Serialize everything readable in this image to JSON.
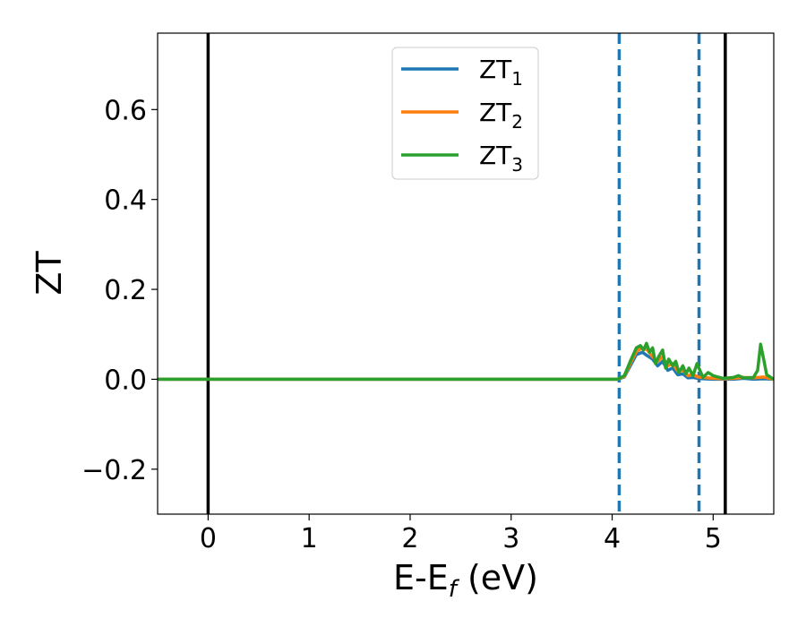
{
  "chart_data": {
    "type": "line",
    "title": "",
    "xlabel": {
      "main": "E-E",
      "sub": "f",
      "unit": " (eV)"
    },
    "ylabel": "ZT",
    "xlim": [
      -0.5,
      5.6
    ],
    "ylim": [
      -0.3,
      0.77
    ],
    "xticks": [
      0,
      1,
      2,
      3,
      4,
      5
    ],
    "xtick_labels": [
      "0",
      "1",
      "2",
      "3",
      "4",
      "5"
    ],
    "yticks": [
      -0.2,
      0.0,
      0.2,
      0.4,
      0.6
    ],
    "ytick_labels": [
      "−0.2",
      "0.0",
      "0.2",
      "0.4",
      "0.6"
    ],
    "grid": false,
    "legend_position": "top-center",
    "vlines": [
      {
        "x": 0.0,
        "style": "solid",
        "color": "#000000"
      },
      {
        "x": 5.12,
        "style": "solid",
        "color": "#000000"
      },
      {
        "x": 4.07,
        "style": "dashed",
        "color": "#1f77b4"
      },
      {
        "x": 4.86,
        "style": "dashed",
        "color": "#1f77b4"
      }
    ],
    "series": [
      {
        "name": "ZT",
        "name_sub": "1",
        "color": "#1f77b4",
        "x": [
          -0.5,
          4.05,
          4.12,
          4.18,
          4.24,
          4.3,
          4.35,
          4.4,
          4.45,
          4.5,
          4.55,
          4.6,
          4.65,
          4.7,
          4.75,
          4.8,
          4.85,
          4.9,
          5.0,
          5.1,
          5.2,
          5.3,
          5.4,
          5.5,
          5.6
        ],
        "y": [
          0.0,
          0.0,
          0.005,
          0.03,
          0.055,
          0.06,
          0.052,
          0.045,
          0.03,
          0.04,
          0.02,
          0.025,
          0.01,
          0.012,
          0.003,
          0.004,
          0.002,
          0.001,
          0.0,
          0.0,
          0.0,
          0.002,
          0.0,
          0.001,
          0.0
        ]
      },
      {
        "name": "ZT",
        "name_sub": "2",
        "color": "#ff7f0e",
        "x": [
          -0.5,
          4.05,
          4.12,
          4.18,
          4.24,
          4.3,
          4.35,
          4.4,
          4.45,
          4.5,
          4.55,
          4.6,
          4.65,
          4.7,
          4.75,
          4.8,
          4.85,
          4.9,
          5.0,
          5.1,
          5.2,
          5.3,
          5.4,
          5.5,
          5.6
        ],
        "y": [
          0.0,
          0.0,
          0.006,
          0.035,
          0.062,
          0.07,
          0.065,
          0.05,
          0.04,
          0.05,
          0.03,
          0.035,
          0.018,
          0.02,
          0.008,
          0.01,
          0.005,
          0.004,
          0.002,
          0.001,
          0.002,
          0.004,
          0.003,
          0.005,
          0.0
        ]
      },
      {
        "name": "ZT",
        "name_sub": "3",
        "color": "#2ca02c",
        "x": [
          -0.5,
          4.05,
          4.12,
          4.18,
          4.24,
          4.28,
          4.31,
          4.34,
          4.37,
          4.4,
          4.43,
          4.46,
          4.5,
          4.53,
          4.56,
          4.6,
          4.63,
          4.66,
          4.7,
          4.73,
          4.76,
          4.8,
          4.84,
          4.9,
          4.95,
          5.0,
          5.1,
          5.2,
          5.25,
          5.3,
          5.4,
          5.44,
          5.47,
          5.5,
          5.53,
          5.6
        ],
        "y": [
          0.0,
          0.0,
          0.008,
          0.04,
          0.07,
          0.075,
          0.065,
          0.08,
          0.06,
          0.07,
          0.035,
          0.05,
          0.065,
          0.025,
          0.045,
          0.03,
          0.04,
          0.015,
          0.03,
          0.012,
          0.025,
          0.008,
          0.035,
          0.004,
          0.015,
          0.008,
          0.002,
          0.004,
          0.008,
          0.003,
          0.004,
          0.02,
          0.078,
          0.045,
          0.01,
          0.0
        ]
      }
    ]
  }
}
